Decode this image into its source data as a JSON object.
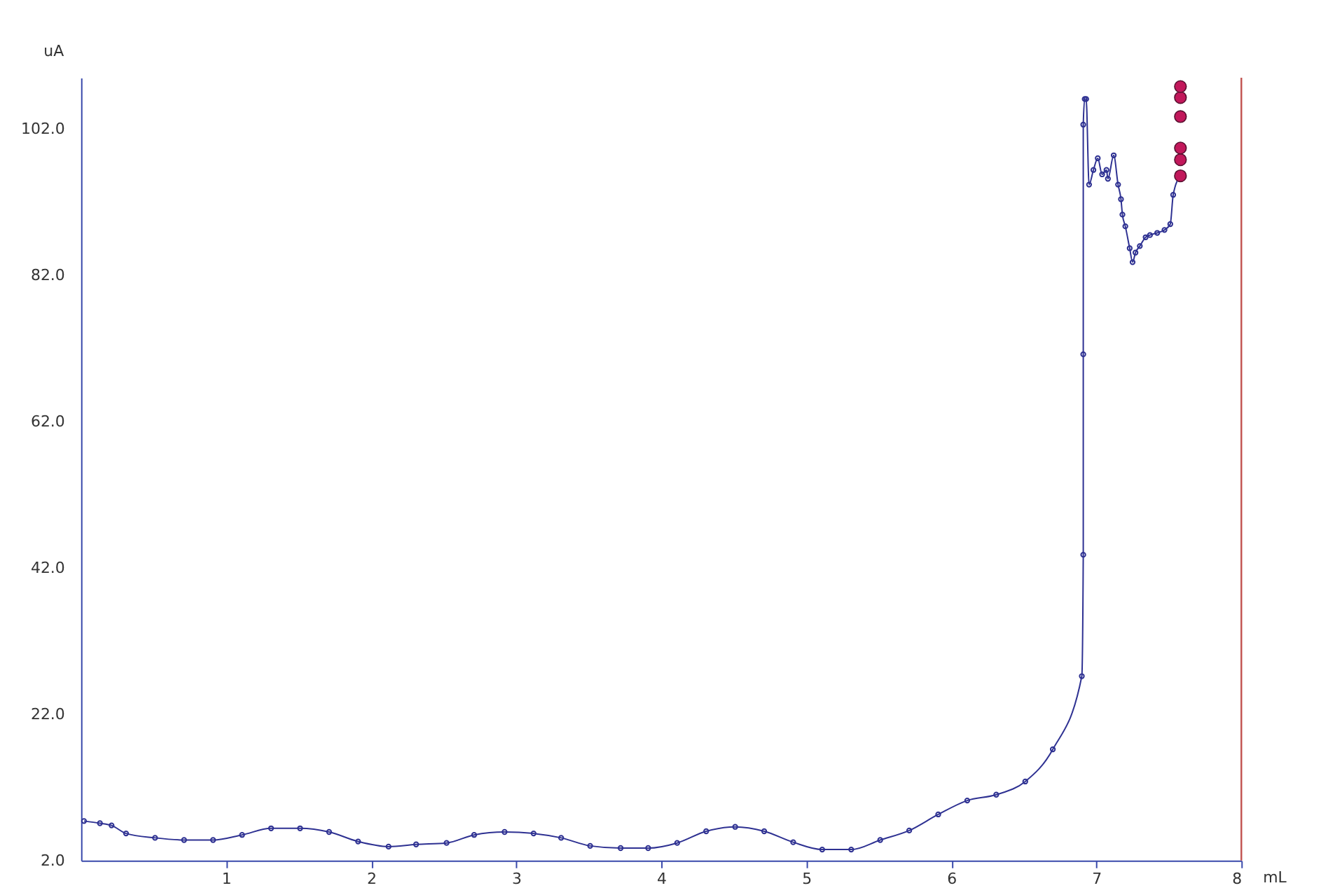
{
  "chart_data": {
    "type": "line",
    "xlabel": "mL",
    "ylabel": "uA",
    "xlim": [
      0,
      8
    ],
    "xticks": [
      1,
      2,
      3,
      4,
      5,
      6,
      7,
      8
    ],
    "ylim": [
      2,
      109
    ],
    "yticks": [
      {
        "value": 2,
        "label": "2.0"
      },
      {
        "value": 22,
        "label": "22.0"
      },
      {
        "value": 42,
        "label": "42.0"
      },
      {
        "value": 62,
        "label": "62.0"
      },
      {
        "value": 82,
        "label": "82.0"
      },
      {
        "value": 102,
        "label": "102.0"
      }
    ],
    "grid": false,
    "marker": "circle",
    "line_style": "solid",
    "series": [
      {
        "color": "#2e3192",
        "x": [
          0.02,
          0.13,
          0.21,
          0.31,
          0.51,
          0.71,
          0.91,
          1.11,
          1.31,
          1.51,
          1.71,
          1.91,
          2.12,
          2.31,
          2.52,
          2.71,
          2.92,
          3.12,
          3.31,
          3.51,
          3.72,
          3.91,
          4.11,
          4.31,
          4.51,
          4.71,
          4.91,
          5.11,
          5.31,
          5.51,
          5.71,
          5.91,
          6.11,
          6.31,
          6.51,
          6.7,
          6.9,
          6.91,
          6.91,
          6.91,
          6.92,
          6.93,
          6.95,
          6.98,
          7.01,
          7.04,
          7.07,
          7.08,
          7.12,
          7.15,
          7.17,
          7.18,
          7.2,
          7.23,
          7.25,
          7.27,
          7.3,
          7.34,
          7.37,
          7.42,
          7.47,
          7.51,
          7.53,
          7.58
        ],
        "values": [
          7.4,
          7.1,
          6.8,
          5.7,
          5.1,
          4.8,
          4.8,
          5.5,
          6.4,
          6.4,
          5.9,
          4.6,
          3.9,
          4.2,
          4.4,
          5.5,
          5.9,
          5.7,
          5.1,
          4.0,
          3.7,
          3.7,
          4.4,
          6.0,
          6.6,
          6.0,
          4.5,
          3.5,
          3.5,
          4.8,
          6.1,
          8.3,
          10.2,
          11.0,
          12.8,
          17.2,
          27.2,
          43.8,
          71.2,
          102.6,
          106.1,
          106.1,
          94.4,
          96.4,
          98.0,
          95.8,
          96.4,
          95.2,
          98.4,
          94.4,
          92.4,
          90.3,
          88.7,
          85.7,
          83.8,
          85.1,
          86.0,
          87.2,
          87.5,
          87.8,
          88.2,
          89.0,
          93.0,
          95.6
        ]
      },
      {
        "type": "scatter",
        "color": "#c2185b",
        "x": [
          7.58,
          7.58,
          7.58,
          7.58,
          7.58,
          7.58
        ],
        "values": [
          95.6,
          97.8,
          99.4,
          103.7,
          106.3,
          107.8
        ]
      }
    ]
  }
}
